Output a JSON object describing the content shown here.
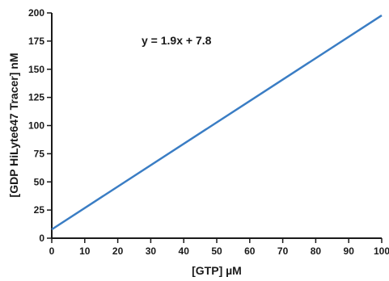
{
  "chart_data": {
    "type": "line",
    "title": "",
    "xlabel": "[GTP] µM",
    "ylabel": "[GDP HiLyte647 Tracer] nM",
    "xlim": [
      0,
      100
    ],
    "ylim": [
      0,
      200
    ],
    "x_ticks": [
      0,
      10,
      20,
      30,
      40,
      50,
      60,
      70,
      80,
      90,
      100
    ],
    "y_ticks": [
      0,
      25,
      50,
      75,
      100,
      125,
      150,
      175,
      200
    ],
    "grid": false,
    "legend": "none",
    "line_color": "#3a7dc4",
    "annotation": "y = 1.9x + 7.8",
    "series": [
      {
        "x": [
          0,
          100
        ],
        "y": [
          7.8,
          197.8
        ]
      }
    ]
  }
}
